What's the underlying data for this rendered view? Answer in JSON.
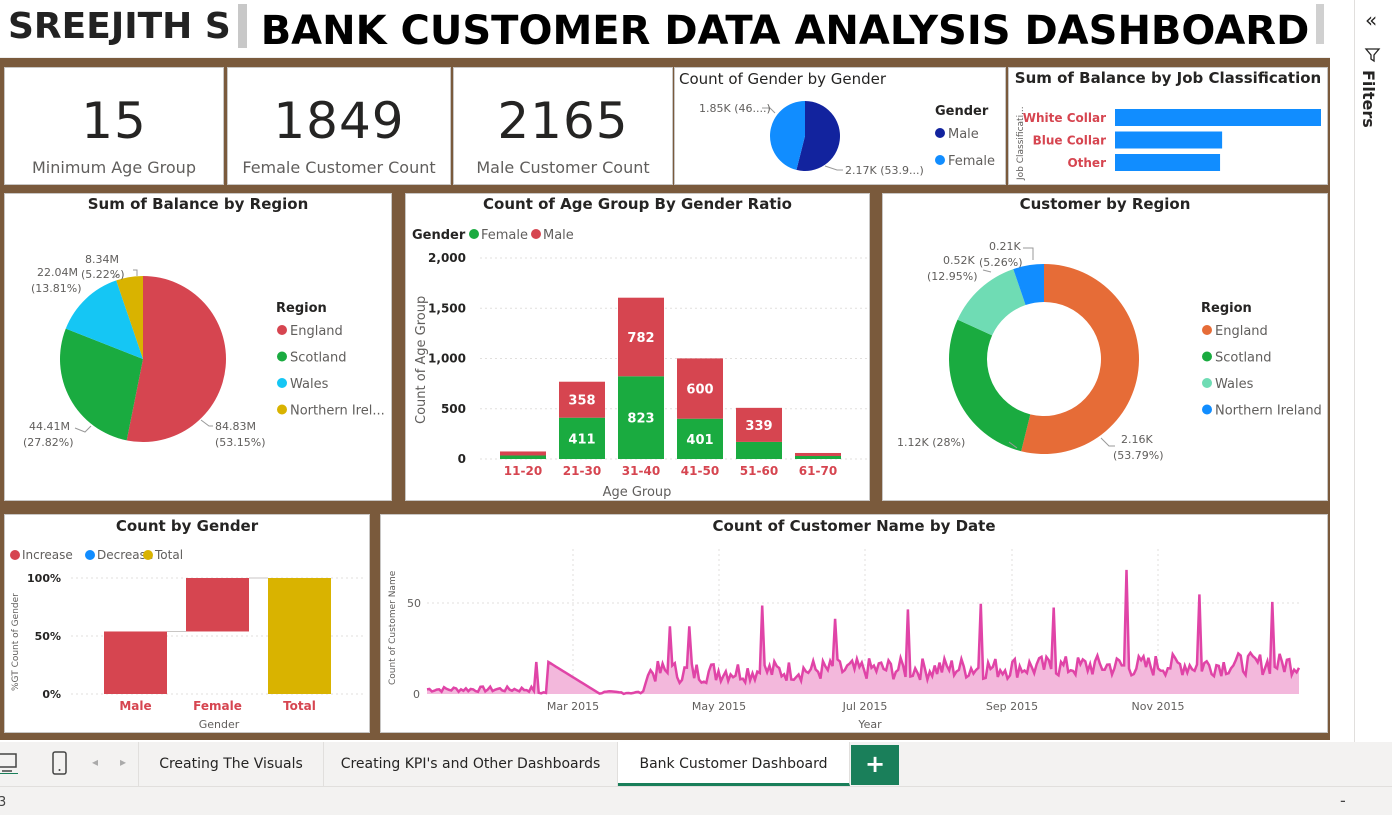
{
  "header": {
    "author": "SREEJITH S",
    "title": "BANK CUSTOMER DATA ANALYSIS DASHBOARD"
  },
  "kpis": [
    {
      "value": "15",
      "label": "Minimum Age Group"
    },
    {
      "value": "1849",
      "label": "Female Customer Count"
    },
    {
      "value": "2165",
      "label": "Male Customer Count"
    }
  ],
  "gender_pie": {
    "title": "Count of Gender by Gender",
    "legend_title": "Gender",
    "male_label": "Male",
    "female_label": "Female",
    "female_dl": "1.85K (46....)",
    "male_dl": "2.17K (53.9...)",
    "male_color": "#12239e",
    "female_color": "#118dff",
    "chart_data": {
      "type": "pie",
      "title": "Count of Gender by Gender",
      "categories": [
        "Male",
        "Female"
      ],
      "values": [
        2165,
        1849
      ]
    }
  },
  "job_bar": {
    "title": "Sum of Balance by Job Classification",
    "axis_label": "Job Classificati...",
    "bar_color": "#118dff",
    "label_color": "#d64550",
    "chart_data": {
      "type": "bar",
      "orientation": "horizontal",
      "categories": [
        "White Collar",
        "Blue Collar",
        "Other"
      ],
      "values": [
        100,
        52,
        51
      ]
    }
  },
  "region_pie": {
    "title": "Sum of Balance by Region",
    "legend_title": "Region",
    "chart_data": {
      "type": "pie",
      "title": "Sum of Balance by Region",
      "categories": [
        "England",
        "Scotland",
        "Wales",
        "Northern Irel..."
      ],
      "values": [
        84.83,
        44.41,
        22.04,
        8.34
      ],
      "percent": [
        53.15,
        27.82,
        13.81,
        5.22
      ],
      "colors": [
        "#d64550",
        "#1aab40",
        "#15c6f4",
        "#d9b300"
      ]
    },
    "labels": {
      "england": [
        "84.83M",
        "(53.15%)"
      ],
      "scotland": [
        "44.41M",
        "(27.82%)"
      ],
      "wales": [
        "22.04M",
        "(13.81%)"
      ],
      "ni": [
        "8.34M",
        "(5.22%)"
      ]
    }
  },
  "age_bar": {
    "title": "Count of Age Group By Gender Ratio",
    "legend_title": "Gender",
    "female_label": "Female",
    "male_label": "Male",
    "ylabel": "Count of Age Group",
    "xlabel": "Age Group",
    "yticks": [
      "2,000",
      "1,500",
      "1,000",
      "500",
      "0"
    ],
    "chart_data": {
      "type": "bar",
      "stacked": true,
      "categories": [
        "11-20",
        "21-30",
        "31-40",
        "41-50",
        "51-60",
        "61-70"
      ],
      "ylim": [
        0,
        2000
      ],
      "series": [
        {
          "name": "Female",
          "color": "#1aab40",
          "values": [
            35,
            411,
            823,
            401,
            170,
            30
          ],
          "labels": [
            "",
            "411",
            "823",
            "401",
            "",
            ""
          ]
        },
        {
          "name": "Male",
          "color": "#d64550",
          "values": [
            40,
            358,
            782,
            600,
            339,
            30
          ],
          "labels": [
            "",
            "358",
            "782",
            "600",
            "339",
            ""
          ]
        }
      ]
    }
  },
  "cust_region": {
    "title": "Customer by Region",
    "legend_title": "Region",
    "chart_data": {
      "type": "pie",
      "donut": true,
      "title": "Customer by Region",
      "categories": [
        "England",
        "Scotland",
        "Wales",
        "Northern Ireland"
      ],
      "values": [
        2160,
        1120,
        520,
        210
      ],
      "percent": [
        53.79,
        28,
        12.95,
        5.26
      ],
      "colors": [
        "#e66c37",
        "#1aab40",
        "#6fdcb4",
        "#118dff"
      ]
    },
    "labels": {
      "england": [
        "2.16K",
        "(53.79%)"
      ],
      "scotland": [
        "1.12K (28%)"
      ],
      "wales": [
        "0.52K",
        "(12.95%)"
      ],
      "ni": [
        "0.21K",
        "(5.26%)"
      ]
    }
  },
  "waterfall": {
    "title": "Count by Gender",
    "increase": "Increase",
    "decrease": "Decrease",
    "total": "Total",
    "ylabel": "%GT Count of Gender",
    "xlabel": "Gender",
    "yticks": [
      "100%",
      "50%",
      "0%"
    ],
    "chart_data": {
      "type": "bar",
      "variant": "waterfall",
      "categories": [
        "Male",
        "Female",
        "Total"
      ],
      "values": [
        53.9,
        46.1,
        100
      ],
      "ylim": [
        0,
        100
      ],
      "colors": [
        "#d64550",
        "#d64550",
        "#d9b300"
      ]
    }
  },
  "timeline": {
    "title": "Count of Customer Name by Date",
    "ylabel": "Count of Customer Name",
    "xlabel": "Year",
    "ytick_50": "50",
    "ytick_0": "0",
    "xticks": [
      "Mar 2015",
      "May 2015",
      "Jul 2015",
      "Sep 2015",
      "Nov 2015"
    ],
    "color": "#e044a7",
    "chart_data": {
      "type": "area",
      "title": "Count of Customer Name by Date",
      "x": [
        "Jan 2015",
        "Feb 2015",
        "Mar 2015",
        "Apr 2015",
        "May 2015",
        "Jun 2015",
        "Jul 2015",
        "Aug 2015",
        "Sep 2015",
        "Oct 2015",
        "Nov 2015",
        "Dec 2015"
      ],
      "y": [
        3,
        27,
        1,
        36,
        47,
        40,
        45,
        48,
        46,
        66,
        53,
        49
      ],
      "ylim": [
        0,
        75
      ]
    }
  },
  "filters": {
    "label": "Filters"
  },
  "tabs": [
    {
      "label": "Creating The Visuals"
    },
    {
      "label": "Creating KPI's and Other Dashboards"
    },
    {
      "label": "Bank Customer Dashboard"
    }
  ],
  "add_tab": "+",
  "status": {
    "page": "3",
    "zoom": "-"
  }
}
